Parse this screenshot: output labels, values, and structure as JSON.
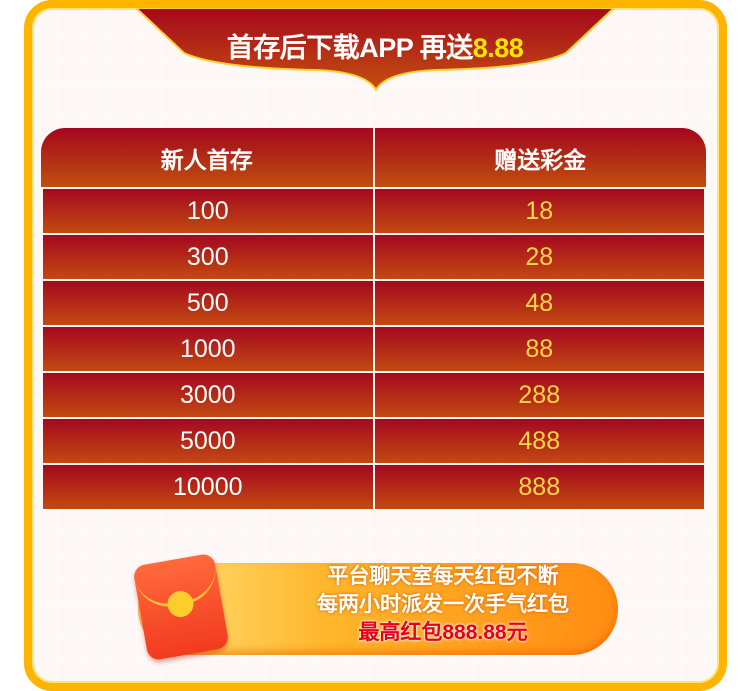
{
  "banner": {
    "title": "首存后下载APP 再送",
    "highlight": "8.88"
  },
  "table": {
    "headers": [
      "新人首存",
      "赠送彩金"
    ],
    "rows": [
      {
        "deposit": "100",
        "bonus": "18"
      },
      {
        "deposit": "300",
        "bonus": "28"
      },
      {
        "deposit": "500",
        "bonus": "48"
      },
      {
        "deposit": "1000",
        "bonus": "88"
      },
      {
        "deposit": "3000",
        "bonus": "288"
      },
      {
        "deposit": "5000",
        "bonus": "488"
      },
      {
        "deposit": "10000",
        "bonus": "888"
      }
    ]
  },
  "promo": {
    "line1": "平台聊天室每天红包不断",
    "line2": "每两小时派发一次手气红包",
    "line3": "最高红包888.88元",
    "icon": "red-envelope-icon"
  },
  "colors": {
    "frame": "#ffb400",
    "header_red": "#a4061e",
    "bonus_text": "#ffd64a",
    "highlight": "#ffe600"
  }
}
